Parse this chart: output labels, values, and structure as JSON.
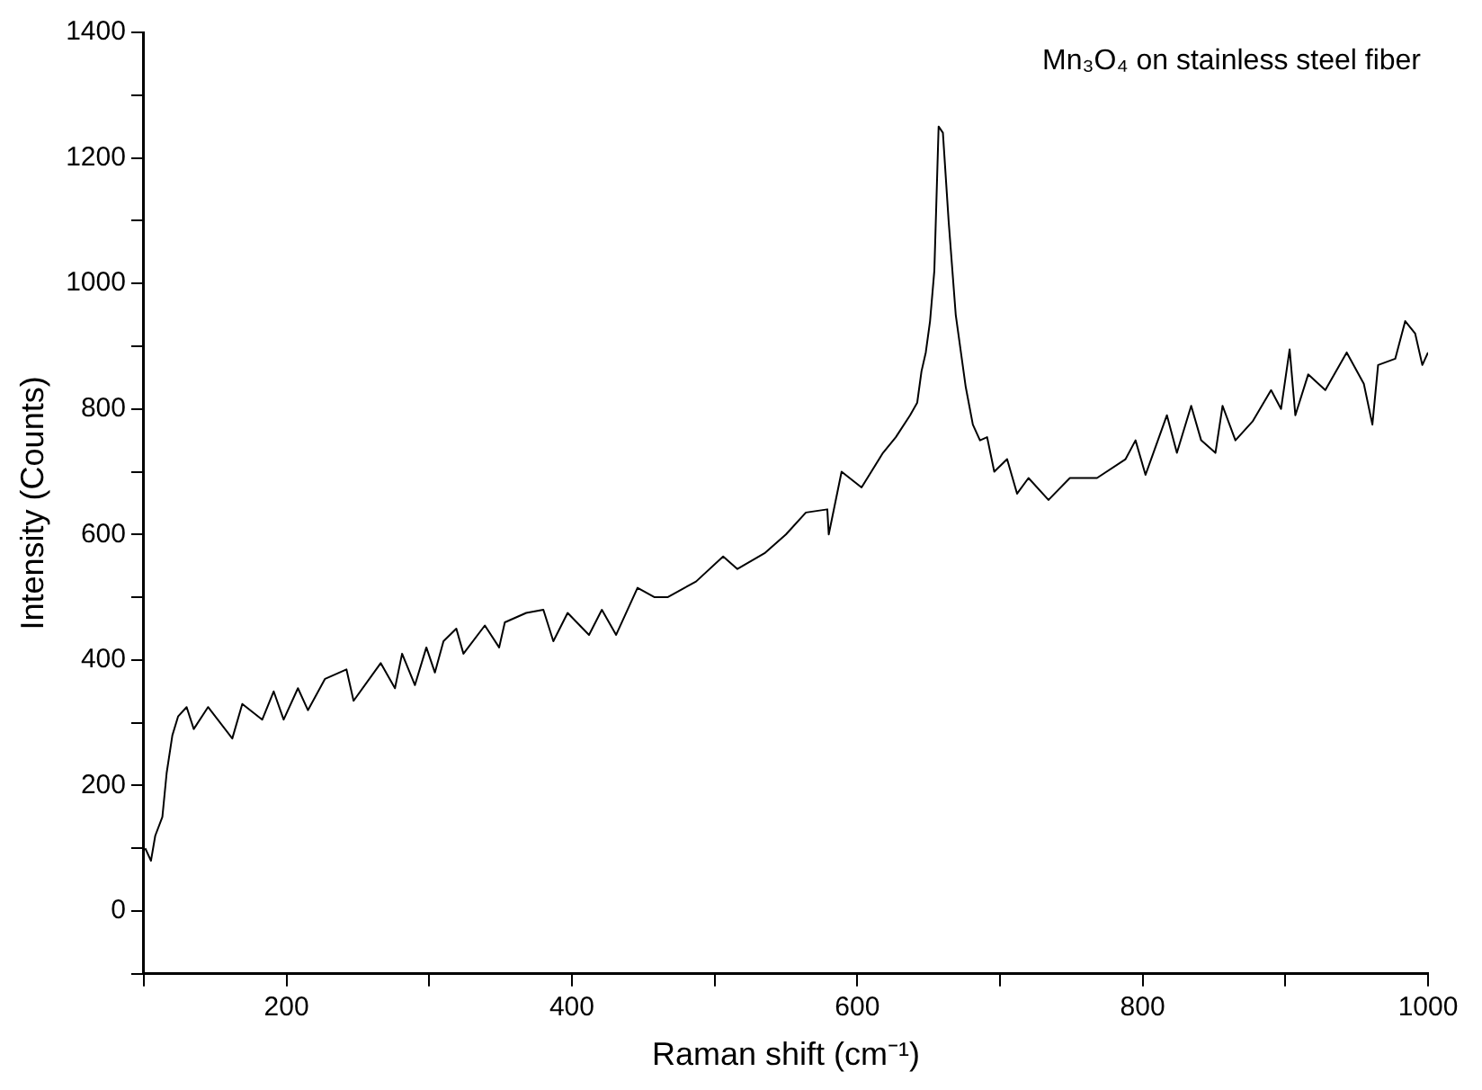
{
  "chart_data": {
    "type": "line",
    "xlabel": "Raman shift (cm⁻¹)",
    "ylabel": "Intensity (Counts)",
    "annotations": [
      "Mn₃O₄ on stainless steel fiber"
    ],
    "series": [
      {
        "color": "#000000",
        "x": [
          101,
          105,
          108,
          113,
          116,
          120,
          124,
          130,
          135,
          145,
          162,
          169,
          183,
          191,
          198,
          208,
          215,
          227,
          242,
          247,
          266,
          276,
          281,
          290,
          298,
          304,
          310,
          319,
          324,
          339,
          349,
          353,
          368,
          380,
          387,
          397,
          412,
          421,
          431,
          446,
          458,
          467,
          487,
          506,
          516,
          535,
          550,
          564,
          579,
          580,
          589,
          603,
          618,
          627,
          637,
          642,
          645,
          648,
          651,
          654,
          657,
          660,
          664,
          669,
          676,
          681,
          686,
          691,
          696,
          705,
          712,
          720,
          734,
          749,
          768,
          788,
          795,
          802,
          817,
          824,
          834,
          841,
          851,
          856,
          865,
          877,
          890,
          897,
          903,
          907,
          916,
          928,
          943,
          955,
          961,
          965,
          977,
          984,
          991,
          996,
          1000
        ],
        "values": [
          100,
          80,
          120,
          150,
          220,
          280,
          310,
          325,
          290,
          325,
          275,
          330,
          305,
          350,
          305,
          355,
          320,
          370,
          385,
          335,
          395,
          355,
          410,
          360,
          420,
          380,
          430,
          450,
          410,
          455,
          420,
          460,
          475,
          480,
          430,
          475,
          440,
          480,
          440,
          515,
          500,
          500,
          525,
          565,
          545,
          570,
          600,
          635,
          640,
          600,
          700,
          675,
          730,
          755,
          790,
          810,
          860,
          890,
          940,
          1020,
          1250,
          1240,
          1100,
          950,
          835,
          775,
          750,
          755,
          700,
          720,
          665,
          690,
          655,
          690,
          690,
          720,
          750,
          695,
          790,
          730,
          805,
          750,
          730,
          805,
          750,
          780,
          830,
          800,
          895,
          790,
          855,
          830,
          890,
          840,
          775,
          870,
          880,
          940,
          920,
          870,
          890
        ]
      }
    ],
    "xlim": [
      100,
      1000
    ],
    "ylim": [
      -100,
      1400
    ],
    "xticks": [
      {
        "value": 100,
        "label": null
      },
      200,
      {
        "value": 300,
        "label": null
      },
      400,
      {
        "value": 500,
        "label": null
      },
      600,
      {
        "value": 700,
        "label": null
      },
      800,
      {
        "value": 900,
        "label": null
      },
      1000
    ],
    "yticks": [
      {
        "value": -100,
        "label": null
      },
      0,
      {
        "value": 100,
        "label": null
      },
      200,
      {
        "value": 300,
        "label": null
      },
      400,
      {
        "value": 500,
        "label": null
      },
      600,
      {
        "value": 700,
        "label": null
      },
      800,
      {
        "value": 900,
        "label": null
      },
      1000,
      {
        "value": 1100,
        "label": null
      },
      1200,
      {
        "value": 1300,
        "label": null
      },
      1400
    ],
    "grid": false,
    "legend": false,
    "marker": "none",
    "line_style": "solid"
  }
}
